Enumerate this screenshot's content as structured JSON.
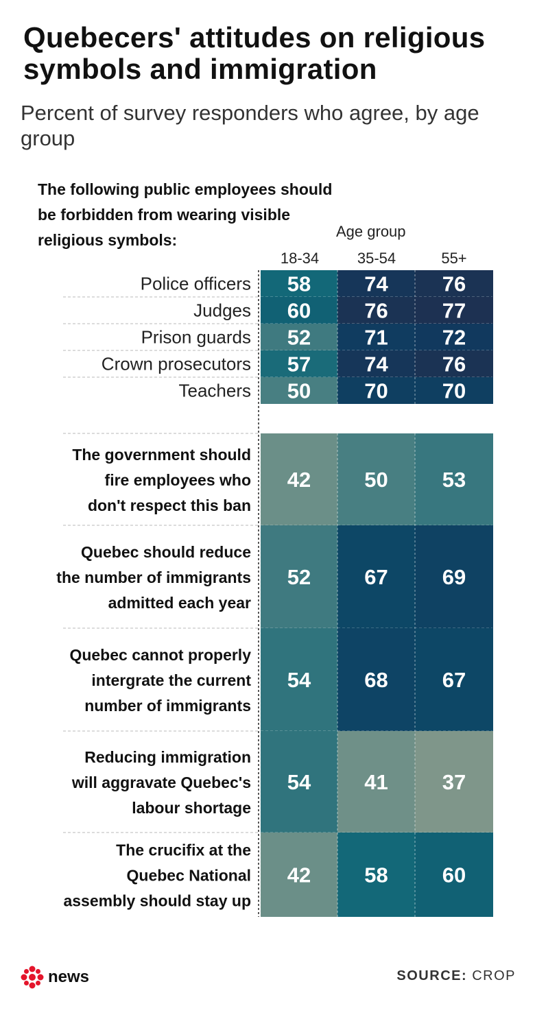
{
  "header": {
    "title": "Quebecers' attitudes on religious symbols and immigration",
    "subtitle": "Percent of survey responders who agree, by age group",
    "intro": "The following public employees should be forbidden from wearing visible religious symbols:"
  },
  "footer": {
    "logo_text": "news",
    "logo_icon": "cbc-gem-icon",
    "source_label": "SOURCE:",
    "source_value": "CROP"
  },
  "colors": {
    "scale_low": "#7f968a",
    "scale_high": "#1d3152",
    "text_on_cell": "#ffffff"
  },
  "chart_data": {
    "type": "heatmap",
    "column_group_label": "Age group",
    "columns": [
      "18-34",
      "35-54",
      "55+"
    ],
    "groups": [
      {
        "rows": [
          {
            "label": "Police officers",
            "values": [
              58,
              74,
              76
            ]
          },
          {
            "label": "Judges",
            "values": [
              60,
              76,
              77
            ]
          },
          {
            "label": "Prison guards",
            "values": [
              52,
              71,
              72
            ]
          },
          {
            "label": "Crown prosecutors",
            "values": [
              57,
              74,
              76
            ]
          },
          {
            "label": "Teachers",
            "values": [
              50,
              70,
              70
            ]
          }
        ]
      },
      {
        "rows": [
          {
            "label": "The government should fire employees who don't respect this ban",
            "lines": [
              "The government should",
              "fire employees who",
              "don't respect this ban"
            ],
            "values": [
              42,
              50,
              53
            ]
          },
          {
            "label": "Quebec should reduce the number of immigrants admitted each year",
            "lines": [
              "Quebec should reduce",
              "the number of immigrants",
              "admitted each year"
            ],
            "values": [
              52,
              67,
              69
            ]
          },
          {
            "label": "Quebec cannot properly intergrate the current number of immigrants",
            "lines": [
              "Quebec cannot properly",
              "intergrate the current",
              "number of immigrants"
            ],
            "values": [
              54,
              68,
              67
            ]
          },
          {
            "label": "Reducing immigration will aggravate Quebec's labour shortage",
            "lines": [
              "Reducing immigration",
              "will aggravate Quebec's",
              "labour shortage"
            ],
            "values": [
              54,
              41,
              37
            ]
          },
          {
            "label": "The crucifix at the Quebec National assembly should stay up",
            "lines": [
              "The crucifix at the",
              "Quebec National",
              "assembly should stay up"
            ],
            "values": [
              42,
              58,
              60
            ]
          }
        ]
      }
    ]
  }
}
